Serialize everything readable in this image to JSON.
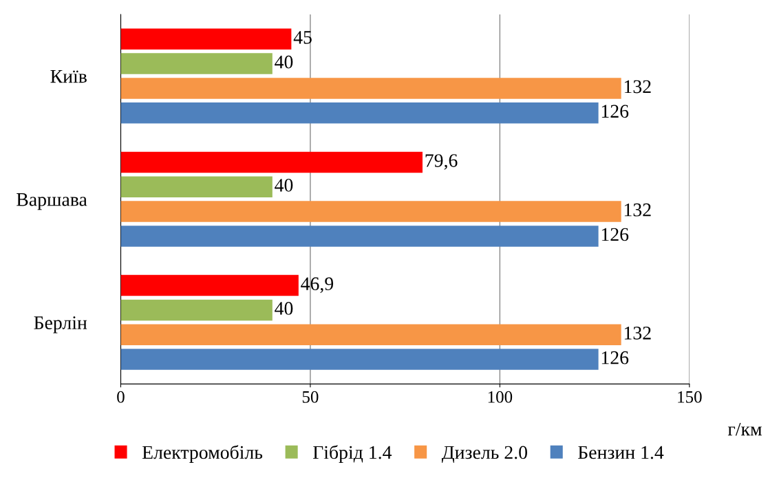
{
  "chart_data": {
    "type": "bar",
    "orientation": "horizontal",
    "xlabel": "г/км",
    "categories": [
      "Київ",
      "Варшава",
      "Берлін"
    ],
    "series": [
      {
        "name": "Електромобіль",
        "color": "#ff0000",
        "values": [
          45,
          79.6,
          46.9
        ],
        "value_labels": [
          "45",
          "79,6",
          "46,9"
        ]
      },
      {
        "name": "Гібрід 1.4",
        "color": "#9bbb59",
        "values": [
          40,
          40,
          40
        ],
        "value_labels": [
          "40",
          "40",
          "40"
        ]
      },
      {
        "name": "Дизель 2.0",
        "color": "#f79646",
        "values": [
          132,
          132,
          132
        ],
        "value_labels": [
          "132",
          "132",
          "132"
        ]
      },
      {
        "name": "Бензин 1.4",
        "color": "#4f81bd",
        "values": [
          126,
          126,
          126
        ],
        "value_labels": [
          "126",
          "126",
          "126"
        ]
      }
    ],
    "xlim": [
      0,
      150
    ],
    "xticks": [
      0,
      50,
      100,
      150
    ],
    "grid": "x",
    "legend": "bottom"
  }
}
